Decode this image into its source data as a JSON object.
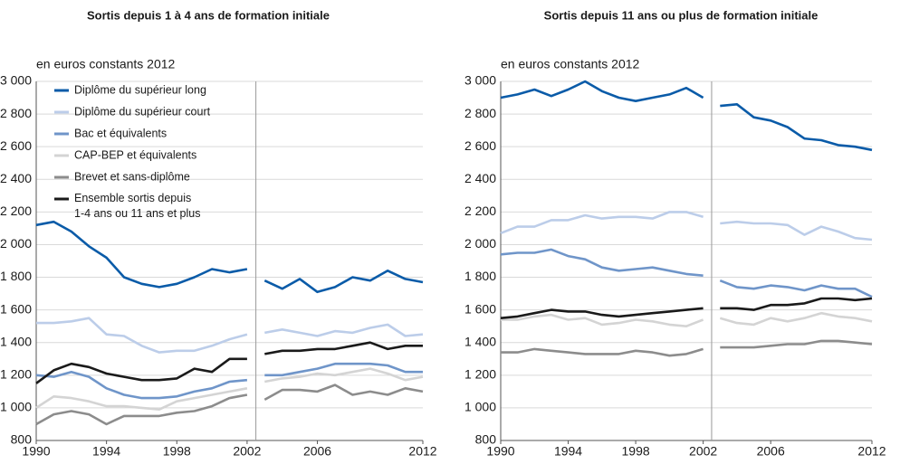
{
  "chart_data": [
    {
      "type": "line",
      "title": "Sortis depuis 1 à 4 ans de formation initiale",
      "ylabel": "en euros constants 2012",
      "x": [
        1990,
        1991,
        1992,
        1993,
        1994,
        1995,
        1996,
        1997,
        1998,
        1999,
        2000,
        2001,
        2002,
        2003,
        2004,
        2005,
        2006,
        2007,
        2008,
        2009,
        2010,
        2011,
        2012
      ],
      "break_after": 2002,
      "legend": "upper left",
      "grid": true,
      "xlim": [
        1990,
        2012
      ],
      "xticks": [
        1990,
        1994,
        1998,
        2002,
        2006,
        2012
      ],
      "ylim": [
        800,
        3000
      ],
      "yticks": [
        800,
        {
          "value": 1000,
          "label": "1 000"
        },
        {
          "value": 1200,
          "label": "1 200"
        },
        {
          "value": 1400,
          "label": "1 400"
        },
        {
          "value": 1600,
          "label": "1 600"
        },
        {
          "value": 1800,
          "label": "1 800"
        },
        {
          "value": 2000,
          "label": "2 000"
        },
        {
          "value": 2200,
          "label": "2 200"
        },
        {
          "value": 2400,
          "label": "2 400"
        },
        {
          "value": 2600,
          "label": "2 600"
        },
        {
          "value": 2800,
          "label": "2 800"
        },
        {
          "value": 3000,
          "label": "3 000"
        }
      ],
      "series": [
        {
          "name": "Diplôme du supérieur long",
          "color": "#0a5ba8",
          "values": [
            2120,
            2140,
            2080,
            1990,
            1920,
            1800,
            1760,
            1740,
            1760,
            1800,
            1850,
            1830,
            1850,
            1780,
            1730,
            1790,
            1710,
            1740,
            1800,
            1780,
            1840,
            1790,
            1770
          ]
        },
        {
          "name": "Diplôme du supérieur court",
          "color": "#bccde9",
          "values": [
            1520,
            1520,
            1530,
            1550,
            1450,
            1440,
            1380,
            1340,
            1350,
            1350,
            1380,
            1420,
            1450,
            1460,
            1480,
            1460,
            1440,
            1470,
            1460,
            1490,
            1510,
            1440,
            1450
          ]
        },
        {
          "name": "Bac et équivalents",
          "color": "#6f95c9",
          "values": [
            1200,
            1190,
            1220,
            1190,
            1120,
            1080,
            1060,
            1060,
            1070,
            1100,
            1120,
            1160,
            1170,
            1200,
            1200,
            1220,
            1240,
            1270,
            1270,
            1270,
            1260,
            1220,
            1220
          ]
        },
        {
          "name": "CAP-BEP et équivalents",
          "color": "#d4d4d4",
          "values": [
            1000,
            1070,
            1060,
            1040,
            1010,
            1010,
            1000,
            990,
            1040,
            1060,
            1080,
            1100,
            1120,
            1160,
            1180,
            1190,
            1210,
            1200,
            1220,
            1240,
            1210,
            1170,
            1190
          ]
        },
        {
          "name": "Brevet et sans-diplôme",
          "color": "#8c8c8c",
          "values": [
            900,
            960,
            980,
            960,
            900,
            950,
            950,
            950,
            970,
            980,
            1010,
            1060,
            1080,
            1050,
            1110,
            1110,
            1100,
            1140,
            1080,
            1100,
            1080,
            1120,
            1100
          ]
        },
        {
          "name": "Ensemble sortis depuis 1-4 ans ou 11 ans et plus",
          "color": "#1a1a1a",
          "values": [
            1150,
            1230,
            1270,
            1250,
            1210,
            1190,
            1170,
            1170,
            1180,
            1240,
            1220,
            1300,
            1300,
            1330,
            1350,
            1350,
            1360,
            1360,
            1380,
            1400,
            1360,
            1380,
            1380
          ]
        }
      ]
    },
    {
      "type": "line",
      "title": "Sortis depuis 11 ans ou plus de formation initiale",
      "ylabel": "en euros constants 2012",
      "x": [
        1990,
        1991,
        1992,
        1993,
        1994,
        1995,
        1996,
        1997,
        1998,
        1999,
        2000,
        2001,
        2002,
        2003,
        2004,
        2005,
        2006,
        2007,
        2008,
        2009,
        2010,
        2011,
        2012
      ],
      "break_after": 2002,
      "legend": "none",
      "grid": true,
      "xlim": [
        1990,
        2012
      ],
      "xticks": [
        1990,
        1994,
        1998,
        2002,
        2006,
        2012
      ],
      "ylim": [
        800,
        3000
      ],
      "yticks": [
        800,
        {
          "value": 1000,
          "label": "1 000"
        },
        {
          "value": 1200,
          "label": "1 200"
        },
        {
          "value": 1400,
          "label": "1 400"
        },
        {
          "value": 1600,
          "label": "1 600"
        },
        {
          "value": 1800,
          "label": "1 800"
        },
        {
          "value": 2000,
          "label": "2 000"
        },
        {
          "value": 2200,
          "label": "2 200"
        },
        {
          "value": 2400,
          "label": "2 400"
        },
        {
          "value": 2600,
          "label": "2 600"
        },
        {
          "value": 2800,
          "label": "2 800"
        },
        {
          "value": 3000,
          "label": "3 000"
        }
      ],
      "series": [
        {
          "color": "#0a5ba8",
          "values": [
            2900,
            2920,
            2950,
            2910,
            2950,
            3000,
            2940,
            2900,
            2880,
            2900,
            2920,
            2960,
            2900,
            2850,
            2860,
            2780,
            2760,
            2720,
            2650,
            2640,
            2610,
            2600,
            2580
          ]
        },
        {
          "color": "#bccde9",
          "values": [
            2070,
            2110,
            2110,
            2150,
            2150,
            2180,
            2160,
            2170,
            2170,
            2160,
            2200,
            2200,
            2170,
            2130,
            2140,
            2130,
            2130,
            2120,
            2060,
            2110,
            2080,
            2040,
            2030
          ]
        },
        {
          "color": "#6f95c9",
          "values": [
            1940,
            1950,
            1950,
            1970,
            1930,
            1910,
            1860,
            1840,
            1850,
            1860,
            1840,
            1820,
            1810,
            1780,
            1740,
            1730,
            1750,
            1740,
            1720,
            1750,
            1730,
            1730,
            1680
          ]
        },
        {
          "color": "#d4d4d4",
          "values": [
            1540,
            1540,
            1560,
            1570,
            1540,
            1550,
            1510,
            1520,
            1540,
            1530,
            1510,
            1500,
            1540,
            1550,
            1520,
            1510,
            1550,
            1530,
            1550,
            1580,
            1560,
            1550,
            1530
          ]
        },
        {
          "color": "#8c8c8c",
          "values": [
            1340,
            1340,
            1360,
            1350,
            1340,
            1330,
            1330,
            1330,
            1350,
            1340,
            1320,
            1330,
            1360,
            1370,
            1370,
            1370,
            1380,
            1390,
            1390,
            1410,
            1410,
            1400,
            1390
          ]
        },
        {
          "color": "#1a1a1a",
          "values": [
            1550,
            1560,
            1580,
            1600,
            1590,
            1590,
            1570,
            1560,
            1570,
            1580,
            1590,
            1600,
            1610,
            1610,
            1610,
            1600,
            1630,
            1630,
            1640,
            1670,
            1670,
            1660,
            1670
          ]
        }
      ]
    }
  ]
}
